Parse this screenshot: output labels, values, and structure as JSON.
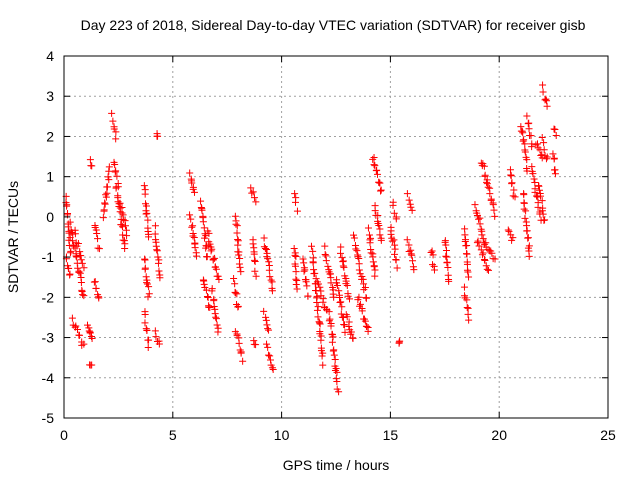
{
  "chart_data": {
    "type": "scatter",
    "title": "Day 223 of 2018, Sidereal Day-to-day VTEC variation (SDTVAR) for receiver gisb",
    "xlabel": "GPS time / hours",
    "ylabel": "SDTVAR / TECUs",
    "xlim": [
      0,
      25
    ],
    "ylim": [
      -5,
      4
    ],
    "xticks": [
      "0",
      "5",
      "10",
      "15",
      "20",
      "25"
    ],
    "yticks": [
      "4",
      "3",
      "2",
      "1",
      "0",
      "-1",
      "-2",
      "-3",
      "-4",
      "-5"
    ],
    "grid": true,
    "marker": "+",
    "marker_color": "#ff0000",
    "series": [
      {
        "name": "SDTVAR",
        "tracks": [
          {
            "t0": 0.1,
            "t1": 0.3,
            "v0": 0.5,
            "v1": -0.9
          },
          {
            "t0": 0.1,
            "t1": 0.3,
            "v0": -1.0,
            "v1": -1.5
          },
          {
            "t0": 0.3,
            "t1": 0.9,
            "v0": -0.2,
            "v1": -2.0
          },
          {
            "t0": 0.4,
            "t1": 0.9,
            "v0": -2.6,
            "v1": -3.2
          },
          {
            "t0": 0.5,
            "t1": 0.9,
            "v0": -0.4,
            "v1": -1.2
          },
          {
            "t0": 1.1,
            "t1": 1.3,
            "v0": -2.6,
            "v1": -3.1
          },
          {
            "t0": 1.2,
            "t1": 1.3,
            "v0": 1.4,
            "v1": 1.2
          },
          {
            "t0": 1.2,
            "t1": 1.3,
            "v0": -3.6,
            "v1": -3.7
          },
          {
            "t0": 1.4,
            "t1": 1.6,
            "v0": -1.6,
            "v1": -2.1
          },
          {
            "t0": 1.4,
            "t1": 1.6,
            "v0": -0.2,
            "v1": -0.8
          },
          {
            "t0": 1.8,
            "t1": 2.1,
            "v0": 0.0,
            "v1": 1.2
          },
          {
            "t0": 2.2,
            "t1": 2.4,
            "v0": 2.5,
            "v1": 2.0
          },
          {
            "t0": 2.3,
            "t1": 2.5,
            "v0": 1.4,
            "v1": 0.8
          },
          {
            "t0": 2.4,
            "t1": 2.8,
            "v0": 0.8,
            "v1": -0.8
          },
          {
            "t0": 2.6,
            "t1": 2.9,
            "v0": 0.3,
            "v1": -0.4
          },
          {
            "t0": 3.7,
            "t1": 3.9,
            "v0": 0.7,
            "v1": -0.5
          },
          {
            "t0": 3.7,
            "t1": 3.9,
            "v0": -1.0,
            "v1": -2.0
          },
          {
            "t0": 3.7,
            "t1": 3.9,
            "v0": -2.4,
            "v1": -3.2
          },
          {
            "t0": 4.3,
            "t1": 4.3,
            "v0": 2.1,
            "v1": 2.0
          },
          {
            "t0": 4.2,
            "t1": 4.4,
            "v0": -0.3,
            "v1": -1.5
          },
          {
            "t0": 4.2,
            "t1": 4.4,
            "v0": -2.9,
            "v1": -3.2
          },
          {
            "t0": 5.8,
            "t1": 6.0,
            "v0": 1.1,
            "v1": 0.6
          },
          {
            "t0": 5.8,
            "t1": 6.1,
            "v0": 0.0,
            "v1": -1.0
          },
          {
            "t0": 6.3,
            "t1": 6.6,
            "v0": 0.4,
            "v1": -1.0
          },
          {
            "t0": 6.4,
            "t1": 6.7,
            "v0": -1.5,
            "v1": -2.3
          },
          {
            "t0": 6.6,
            "t1": 7.1,
            "v0": -0.4,
            "v1": -1.6
          },
          {
            "t0": 6.8,
            "t1": 7.1,
            "v0": -1.8,
            "v1": -2.8
          },
          {
            "t0": 7.9,
            "t1": 8.1,
            "v0": 0.0,
            "v1": -1.4
          },
          {
            "t0": 7.8,
            "t1": 8.0,
            "v0": -1.6,
            "v1": -2.3
          },
          {
            "t0": 7.9,
            "t1": 8.2,
            "v0": -2.8,
            "v1": -3.5
          },
          {
            "t0": 8.6,
            "t1": 8.8,
            "v0": 0.7,
            "v1": 0.4
          },
          {
            "t0": 8.7,
            "t1": 8.8,
            "v0": -0.5,
            "v1": -1.4
          },
          {
            "t0": 8.7,
            "t1": 8.8,
            "v0": -3.0,
            "v1": -3.2
          },
          {
            "t0": 9.2,
            "t1": 9.6,
            "v0": -0.6,
            "v1": -1.8
          },
          {
            "t0": 9.3,
            "t1": 9.6,
            "v0": -3.2,
            "v1": -3.8
          },
          {
            "t0": 9.2,
            "t1": 9.4,
            "v0": -2.4,
            "v1": -2.8
          },
          {
            "t0": 10.6,
            "t1": 10.7,
            "v0": 0.5,
            "v1": 0.2
          },
          {
            "t0": 10.6,
            "t1": 10.7,
            "v0": -0.7,
            "v1": -1.8
          },
          {
            "t0": 11.0,
            "t1": 11.2,
            "v0": -1.0,
            "v1": -2.0
          },
          {
            "t0": 11.4,
            "t1": 11.9,
            "v0": -0.8,
            "v1": -3.6
          },
          {
            "t0": 11.6,
            "t1": 12.1,
            "v0": -1.6,
            "v1": -2.4
          },
          {
            "t0": 12.0,
            "t1": 12.4,
            "v0": -0.8,
            "v1": -2.0
          },
          {
            "t0": 12.2,
            "t1": 12.6,
            "v0": -2.4,
            "v1": -4.3
          },
          {
            "t0": 12.5,
            "t1": 12.9,
            "v0": -1.5,
            "v1": -2.8
          },
          {
            "t0": 12.7,
            "t1": 13.1,
            "v0": -0.8,
            "v1": -2.0
          },
          {
            "t0": 13.0,
            "t1": 13.3,
            "v0": -2.4,
            "v1": -3.1
          },
          {
            "t0": 13.3,
            "t1": 13.9,
            "v0": -0.5,
            "v1": -2.0
          },
          {
            "t0": 13.5,
            "t1": 14.0,
            "v0": -2.0,
            "v1": -2.9
          },
          {
            "t0": 14.0,
            "t1": 14.3,
            "v0": -0.3,
            "v1": -1.5
          },
          {
            "t0": 14.2,
            "t1": 14.6,
            "v0": 1.5,
            "v1": 0.6
          },
          {
            "t0": 14.3,
            "t1": 14.6,
            "v0": 0.3,
            "v1": -0.6
          },
          {
            "t0": 15.0,
            "t1": 15.3,
            "v0": -0.2,
            "v1": -1.2
          },
          {
            "t0": 15.1,
            "t1": 15.3,
            "v0": 0.3,
            "v1": 0.0
          },
          {
            "t0": 15.4,
            "t1": 15.4,
            "v0": -3.0,
            "v1": -3.1
          },
          {
            "t0": 15.8,
            "t1": 16.0,
            "v0": 0.5,
            "v1": 0.2
          },
          {
            "t0": 15.8,
            "t1": 16.1,
            "v0": -0.6,
            "v1": -1.3
          },
          {
            "t0": 16.9,
            "t1": 17.0,
            "v0": -0.8,
            "v1": -1.3
          },
          {
            "t0": 17.5,
            "t1": 17.7,
            "v0": -0.5,
            "v1": -1.6
          },
          {
            "t0": 18.4,
            "t1": 18.6,
            "v0": -0.3,
            "v1": -1.5
          },
          {
            "t0": 18.4,
            "t1": 18.6,
            "v0": -1.8,
            "v1": -2.5
          },
          {
            "t0": 18.9,
            "t1": 19.3,
            "v0": 0.3,
            "v1": -0.6
          },
          {
            "t0": 19.0,
            "t1": 19.5,
            "v0": -0.6,
            "v1": -1.3
          },
          {
            "t0": 19.2,
            "t1": 19.8,
            "v0": 1.4,
            "v1": 0.1
          },
          {
            "t0": 19.3,
            "t1": 19.8,
            "v0": -0.6,
            "v1": -1.0
          },
          {
            "t0": 20.5,
            "t1": 20.7,
            "v0": 1.2,
            "v1": 0.5
          },
          {
            "t0": 20.4,
            "t1": 20.6,
            "v0": -0.3,
            "v1": -0.6
          },
          {
            "t0": 21.0,
            "t1": 21.3,
            "v0": 2.3,
            "v1": 1.2
          },
          {
            "t0": 21.1,
            "t1": 21.4,
            "v0": 0.6,
            "v1": -1.0
          },
          {
            "t0": 21.3,
            "t1": 21.5,
            "v0": 2.5,
            "v1": 1.8
          },
          {
            "t0": 21.5,
            "t1": 21.9,
            "v0": 1.2,
            "v1": 0.0
          },
          {
            "t0": 21.7,
            "t1": 22.0,
            "v0": 1.8,
            "v1": 1.4
          },
          {
            "t0": 21.8,
            "t1": 22.1,
            "v0": 0.8,
            "v1": -0.1
          },
          {
            "t0": 22.0,
            "t1": 22.2,
            "v0": 3.2,
            "v1": 2.7
          },
          {
            "t0": 22.0,
            "t1": 22.2,
            "v0": 1.9,
            "v1": 1.4
          },
          {
            "t0": 22.5,
            "t1": 22.6,
            "v0": 2.2,
            "v1": 2.1
          },
          {
            "t0": 22.5,
            "t1": 22.6,
            "v0": 1.6,
            "v1": 1.0
          }
        ]
      }
    ]
  }
}
